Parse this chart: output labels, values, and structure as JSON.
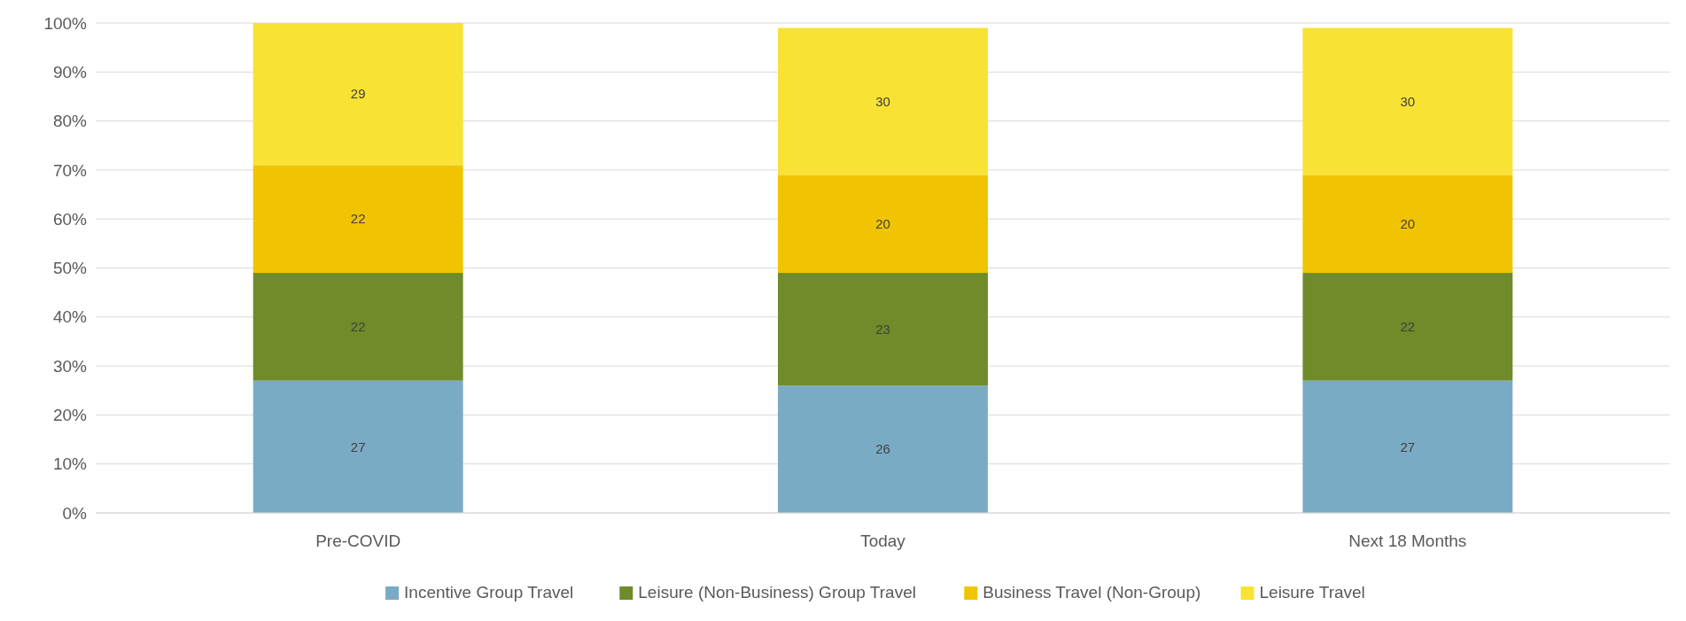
{
  "chart_data": {
    "type": "bar",
    "stacked": true,
    "categories": [
      "Pre-COVID",
      "Today",
      "Next 18 Months"
    ],
    "series": [
      {
        "name": "Incentive Group Travel",
        "color": "#7aabc4",
        "values": [
          27,
          26,
          27
        ]
      },
      {
        "name": "Leisure (Non-Business) Group Travel",
        "color": "#6f8b2a",
        "values": [
          22,
          23,
          22
        ]
      },
      {
        "name": "Business Travel (Non-Group)",
        "color": "#f0c400",
        "values": [
          22,
          20,
          20
        ]
      },
      {
        "name": "Leisure Travel",
        "color": "#f8e234",
        "values": [
          29,
          30,
          30
        ]
      }
    ],
    "ylim": [
      0,
      100
    ],
    "yticks": [
      {
        "value": 0,
        "label": "0%"
      },
      {
        "value": 10,
        "label": "10%"
      },
      {
        "value": 20,
        "label": "20%"
      },
      {
        "value": 30,
        "label": "30%"
      },
      {
        "value": 40,
        "label": "40%"
      },
      {
        "value": 50,
        "label": "50%"
      },
      {
        "value": 60,
        "label": "60%"
      },
      {
        "value": 70,
        "label": "70%"
      },
      {
        "value": 80,
        "label": "80%"
      },
      {
        "value": 90,
        "label": "90%"
      },
      {
        "value": 100,
        "label": "100%"
      }
    ],
    "grid": "y",
    "legend": "bottom",
    "data_labels": true
  }
}
